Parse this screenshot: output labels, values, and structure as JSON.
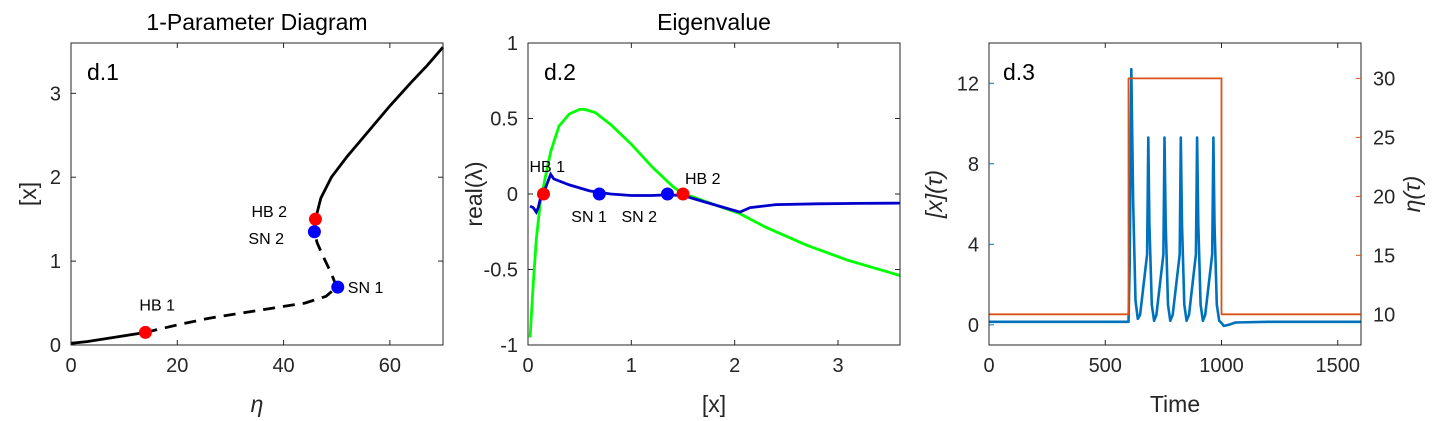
{
  "chart_data": [
    {
      "type": "line",
      "id": "d.1",
      "title": "1-Parameter Diagram",
      "panel_label": "d.1",
      "xlabel": "η",
      "ylabel": "[x]",
      "xlim": [
        0,
        70
      ],
      "ylim": [
        0,
        3.6
      ],
      "xticks": [
        0,
        20,
        40,
        60
      ],
      "yticks": [
        0,
        1,
        2,
        3
      ],
      "series": [
        {
          "style": "solid",
          "color": "#000000",
          "x": [
            0,
            3,
            6,
            9,
            12,
            14
          ],
          "y": [
            0.02,
            0.04,
            0.07,
            0.1,
            0.13,
            0.15
          ]
        },
        {
          "style": "dashed",
          "color": "#000000",
          "x": [
            14,
            20,
            26,
            32,
            38,
            44,
            48,
            50
          ],
          "y": [
            0.15,
            0.24,
            0.32,
            0.38,
            0.44,
            0.5,
            0.58,
            0.69
          ]
        },
        {
          "style": "dashed",
          "color": "#000000",
          "x": [
            50,
            49,
            47.5,
            46.3,
            45.8
          ],
          "y": [
            0.69,
            0.85,
            1.05,
            1.22,
            1.35
          ]
        },
        {
          "style": "solid",
          "color": "#000000",
          "x": [
            45.8,
            46.0,
            47,
            49,
            52,
            56,
            60,
            64,
            67,
            70
          ],
          "y": [
            1.35,
            1.5,
            1.75,
            2.0,
            2.25,
            2.55,
            2.85,
            3.13,
            3.33,
            3.55
          ]
        }
      ],
      "points": [
        {
          "label": "HB 1",
          "x": 14,
          "y": 0.15,
          "color": "#ff0000"
        },
        {
          "label": "SN 1",
          "x": 50.2,
          "y": 0.69,
          "color": "#0000ff"
        },
        {
          "label": "HB 2",
          "x": 46.0,
          "y": 1.5,
          "color": "#ff0000"
        },
        {
          "label": "SN 2",
          "x": 45.8,
          "y": 1.35,
          "color": "#0000ff"
        }
      ]
    },
    {
      "type": "line",
      "id": "d.2",
      "title": "Eigenvalue",
      "panel_label": "d.2",
      "xlabel": "[x]",
      "ylabel": "real(λ)",
      "xlim": [
        0,
        3.6
      ],
      "ylim": [
        -1,
        1
      ],
      "xticks": [
        0,
        1,
        2,
        3
      ],
      "yticks": [
        -1,
        -0.5,
        0,
        0.5,
        1
      ],
      "ytick_labels": [
        "-1",
        "-0.5",
        "0",
        "0.5",
        "1"
      ],
      "series": [
        {
          "color": "#00ff00",
          "x": [
            0.02,
            0.05,
            0.08,
            0.12,
            0.17,
            0.22,
            0.3,
            0.4,
            0.5,
            0.55,
            0.65,
            0.8,
            1.0,
            1.2,
            1.4,
            1.5,
            1.6,
            1.8,
            2.05,
            2.3,
            2.7,
            3.1,
            3.6
          ],
          "y": [
            -0.95,
            -0.6,
            -0.3,
            -0.05,
            0.12,
            0.28,
            0.45,
            0.53,
            0.56,
            0.56,
            0.54,
            0.46,
            0.33,
            0.18,
            0.05,
            0.0,
            -0.02,
            -0.07,
            -0.13,
            -0.22,
            -0.34,
            -0.44,
            -0.54
          ]
        },
        {
          "color": "#0000cc",
          "x": [
            0.02,
            0.05,
            0.08,
            0.1,
            0.12,
            0.15,
            0.18,
            0.22,
            0.25,
            0.4,
            0.6,
            0.8,
            1.0,
            1.2,
            1.35,
            1.5,
            1.7,
            1.9,
            2.05,
            2.15,
            2.4,
            2.8,
            3.2,
            3.6
          ],
          "y": [
            -0.08,
            -0.09,
            -0.12,
            -0.09,
            -0.03,
            0.0,
            0.06,
            0.13,
            0.1,
            0.06,
            0.02,
            0.0,
            -0.01,
            -0.01,
            -0.005,
            -0.01,
            -0.05,
            -0.09,
            -0.12,
            -0.09,
            -0.07,
            -0.065,
            -0.062,
            -0.06
          ]
        }
      ],
      "points": [
        {
          "label": "HB 1",
          "x": 0.15,
          "y": 0.0,
          "color": "#ff0000"
        },
        {
          "label": "SN 1",
          "x": 0.69,
          "y": 0.0,
          "color": "#0000ff"
        },
        {
          "label": "SN 2",
          "x": 1.35,
          "y": 0.0,
          "color": "#0000ff"
        },
        {
          "label": "HB 2",
          "x": 1.5,
          "y": 0.0,
          "color": "#ff0000"
        }
      ]
    },
    {
      "type": "line",
      "id": "d.3",
      "panel_label": "d.3",
      "xlabel": "Time",
      "ylabel_left": "[x](τ)",
      "ylabel_right": "η(τ)",
      "xlim": [
        0,
        1600
      ],
      "ylim_left": [
        -1,
        14
      ],
      "ylim_right": [
        7.4,
        33
      ],
      "xticks": [
        0,
        500,
        1000,
        1500
      ],
      "yticks_left": [
        0,
        4,
        8,
        12
      ],
      "yticks_right": [
        10,
        15,
        20,
        25,
        30
      ],
      "left_color": "#0072bd",
      "right_color": "#d95319",
      "series": [
        {
          "name": "[x](τ)",
          "axis": "left",
          "color": "#0072bd",
          "x": [
            0,
            600,
            605,
            612,
            620,
            630,
            640,
            650,
            680,
            685,
            690,
            700,
            710,
            720,
            750,
            755,
            760,
            770,
            780,
            790,
            820,
            825,
            830,
            840,
            850,
            860,
            890,
            895,
            900,
            910,
            920,
            930,
            960,
            965,
            970,
            980,
            990,
            1000,
            1010,
            1030,
            1060,
            1200,
            1400,
            1600
          ],
          "y": [
            0.15,
            0.15,
            3.0,
            12.7,
            6.0,
            1.2,
            0.3,
            0.5,
            3.5,
            9.3,
            5.0,
            1.0,
            0.2,
            0.5,
            3.5,
            9.3,
            5.0,
            1.0,
            0.2,
            0.5,
            3.5,
            9.3,
            5.0,
            1.0,
            0.2,
            0.5,
            3.5,
            9.3,
            5.0,
            1.0,
            0.2,
            0.5,
            3.5,
            9.3,
            5.0,
            1.0,
            0.2,
            0.1,
            -0.05,
            0.0,
            0.12,
            0.15,
            0.15,
            0.15
          ]
        },
        {
          "name": "η(τ)",
          "axis": "right",
          "color": "#d95319",
          "x": [
            0,
            600,
            600,
            1000,
            1000,
            1600
          ],
          "y": [
            10,
            10,
            30,
            30,
            10,
            10
          ]
        }
      ]
    }
  ]
}
